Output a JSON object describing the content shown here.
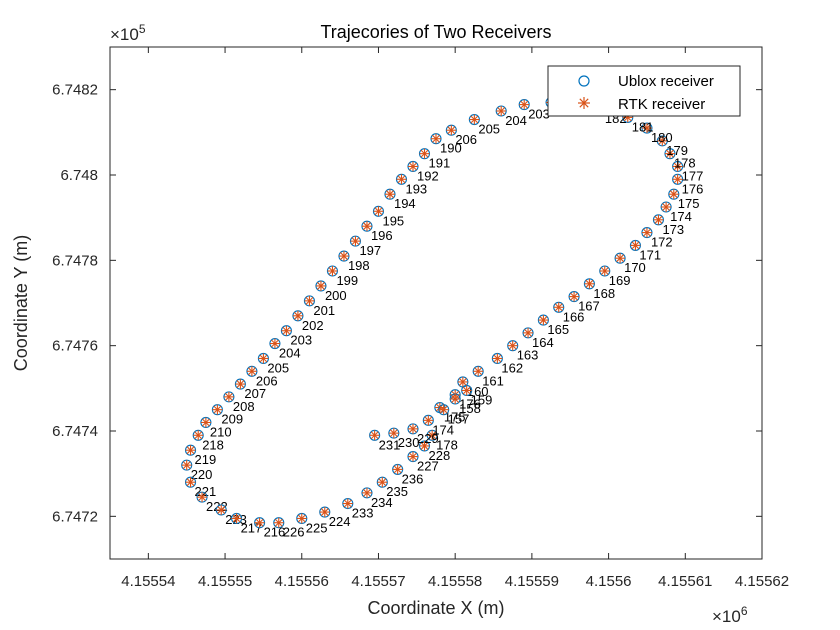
{
  "chart_data": {
    "type": "scatter",
    "title": "Trajecories of Two Receivers",
    "xlabel": "Coordinate X (m)",
    "ylabel": "Coordinate Y (m)",
    "x_exponent": {
      "base": "×10",
      "power": "6"
    },
    "y_exponent": {
      "base": "×10",
      "power": "5"
    },
    "x_scale_factor": 1000000,
    "y_scale_factor": 100000,
    "xlim": [
      4155535,
      4155620
    ],
    "ylim": [
      674710,
      674830
    ],
    "x_tick_labels": [
      "4.15554",
      "4.15555",
      "4.15556",
      "4.15557",
      "4.15558",
      "4.15559",
      "4.1556",
      "4.15561",
      "4.15562"
    ],
    "y_tick_labels": [
      "6.7472",
      "6.7474",
      "6.7476",
      "6.7478",
      "6.748",
      "6.7482"
    ],
    "grid": false,
    "legend_position": "top-right",
    "series": [
      {
        "name": "Ublox receiver",
        "marker": "circle",
        "color": "#0072BD"
      },
      {
        "name": "RTK receiver",
        "marker": "asterisk",
        "color": "#D95319"
      }
    ],
    "points": [
      {
        "label": "190",
        "x": 4155577.5,
        "y": 674808.5
      },
      {
        "label": "191",
        "x": 4155576.0,
        "y": 674805.0
      },
      {
        "label": "192",
        "x": 4155574.5,
        "y": 674802.0
      },
      {
        "label": "193",
        "x": 4155573.0,
        "y": 674799.0
      },
      {
        "label": "194",
        "x": 4155571.5,
        "y": 674795.5
      },
      {
        "label": "195",
        "x": 4155570.0,
        "y": 674791.5
      },
      {
        "label": "196",
        "x": 4155568.5,
        "y": 674788.0
      },
      {
        "label": "197",
        "x": 4155567.0,
        "y": 674784.5
      },
      {
        "label": "198",
        "x": 4155565.5,
        "y": 674781.0
      },
      {
        "label": "199",
        "x": 4155564.0,
        "y": 674777.5
      },
      {
        "label": "200",
        "x": 4155562.5,
        "y": 674774.0
      },
      {
        "label": "201",
        "x": 4155561.0,
        "y": 674770.5
      },
      {
        "label": "202",
        "x": 4155559.5,
        "y": 674767.0
      },
      {
        "label": "203",
        "x": 4155558.0,
        "y": 674763.5
      },
      {
        "label": "204",
        "x": 4155556.5,
        "y": 674760.5
      },
      {
        "label": "205",
        "x": 4155555.0,
        "y": 674757.0
      },
      {
        "label": "206",
        "x": 4155553.5,
        "y": 674754.0
      },
      {
        "label": "207",
        "x": 4155552.0,
        "y": 674751.0
      },
      {
        "label": "208",
        "x": 4155550.5,
        "y": 674748.0
      },
      {
        "label": "209",
        "x": 4155549.0,
        "y": 674745.0
      },
      {
        "label": "210",
        "x": 4155547.5,
        "y": 674742.0
      },
      {
        "label": "218",
        "x": 4155546.5,
        "y": 674739.0
      },
      {
        "label": "219",
        "x": 4155545.5,
        "y": 674735.5
      },
      {
        "label": "220",
        "x": 4155545.0,
        "y": 674732.0
      },
      {
        "label": "221",
        "x": 4155545.5,
        "y": 674728.0
      },
      {
        "label": "222",
        "x": 4155547.0,
        "y": 674724.5
      },
      {
        "label": "223",
        "x": 4155549.5,
        "y": 674721.5
      },
      {
        "label": "217",
        "x": 4155551.5,
        "y": 674719.5
      },
      {
        "label": "216",
        "x": 4155554.5,
        "y": 674718.5
      },
      {
        "label": "226",
        "x": 4155557.0,
        "y": 674718.5
      },
      {
        "label": "225",
        "x": 4155560.0,
        "y": 674719.5
      },
      {
        "label": "224",
        "x": 4155563.0,
        "y": 674721.0
      },
      {
        "label": "233",
        "x": 4155566.0,
        "y": 674723.0
      },
      {
        "label": "234",
        "x": 4155568.5,
        "y": 674725.5
      },
      {
        "label": "235",
        "x": 4155570.5,
        "y": 674728.0
      },
      {
        "label": "236",
        "x": 4155572.5,
        "y": 674731.0
      },
      {
        "label": "227",
        "x": 4155574.5,
        "y": 674734.0
      },
      {
        "label": "228",
        "x": 4155576.0,
        "y": 674736.5
      },
      {
        "label": "178",
        "x": 4155577.0,
        "y": 674739.0
      },
      {
        "label": "174",
        "x": 4155576.5,
        "y": 674742.5
      },
      {
        "label": "175",
        "x": 4155578.0,
        "y": 674745.5
      },
      {
        "label": "176",
        "x": 4155580.0,
        "y": 674748.5
      },
      {
        "label": "160",
        "x": 4155581.0,
        "y": 674751.5
      },
      {
        "label": "161",
        "x": 4155583.0,
        "y": 674754.0
      },
      {
        "label": "162",
        "x": 4155585.5,
        "y": 674757.0
      },
      {
        "label": "163",
        "x": 4155587.5,
        "y": 674760.0
      },
      {
        "label": "164",
        "x": 4155589.5,
        "y": 674763.0
      },
      {
        "label": "165",
        "x": 4155591.5,
        "y": 674766.0
      },
      {
        "label": "166",
        "x": 4155593.5,
        "y": 674769.0
      },
      {
        "label": "167",
        "x": 4155595.5,
        "y": 674771.5
      },
      {
        "label": "168",
        "x": 4155597.5,
        "y": 674774.5
      },
      {
        "label": "169",
        "x": 4155599.5,
        "y": 674777.5
      },
      {
        "label": "170",
        "x": 4155601.5,
        "y": 674780.5
      },
      {
        "label": "171",
        "x": 4155603.5,
        "y": 674783.5
      },
      {
        "label": "172",
        "x": 4155605.0,
        "y": 674786.5
      },
      {
        "label": "173",
        "x": 4155606.5,
        "y": 674789.5
      },
      {
        "label": "174",
        "x": 4155607.5,
        "y": 674792.5
      },
      {
        "label": "175",
        "x": 4155608.5,
        "y": 674795.5
      },
      {
        "label": "176",
        "x": 4155609.0,
        "y": 674799.0
      },
      {
        "label": "177",
        "x": 4155609.0,
        "y": 674802.0
      },
      {
        "label": "178",
        "x": 4155608.0,
        "y": 674805.0
      },
      {
        "label": "179",
        "x": 4155607.0,
        "y": 674808.0
      },
      {
        "label": "180",
        "x": 4155605.0,
        "y": 674811.0
      },
      {
        "label": "181",
        "x": 4155602.5,
        "y": 674813.5
      },
      {
        "label": "182",
        "x": 4155599.0,
        "y": 674815.5
      },
      {
        "label": "202",
        "x": 4155592.5,
        "y": 674817.0
      },
      {
        "label": "203",
        "x": 4155589.0,
        "y": 674816.5
      },
      {
        "label": "204",
        "x": 4155586.0,
        "y": 674815.0
      },
      {
        "label": "205",
        "x": 4155582.5,
        "y": 674813.0
      },
      {
        "label": "206",
        "x": 4155579.5,
        "y": 674810.5
      },
      {
        "label": "157",
        "x": 4155578.5,
        "y": 674745.0
      },
      {
        "label": "158",
        "x": 4155580.0,
        "y": 674747.5
      },
      {
        "label": "159",
        "x": 4155581.5,
        "y": 674749.5
      },
      {
        "label": "229",
        "x": 4155574.5,
        "y": 674740.5
      },
      {
        "label": "230",
        "x": 4155572.0,
        "y": 674739.5
      },
      {
        "label": "231",
        "x": 4155569.5,
        "y": 674739.0
      }
    ]
  },
  "legend": {
    "ublox_label": "Ublox receiver",
    "rtk_label": "RTK receiver"
  }
}
